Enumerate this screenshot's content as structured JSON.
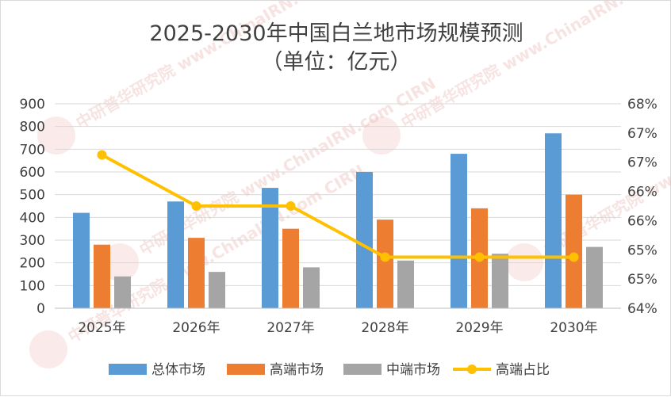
{
  "chart_data": {
    "type": "bar",
    "title": "2025-2030年中国白兰地市场规模预测",
    "subtitle": "（单位：亿元）",
    "categories": [
      "2025年",
      "2026年",
      "2027年",
      "2028年",
      "2029年",
      "2030年"
    ],
    "series": [
      {
        "name": "总体市场",
        "type": "bar",
        "axis": "left",
        "color": "#5b9bd5",
        "values": [
          420,
          470,
          530,
          600,
          680,
          770
        ]
      },
      {
        "name": "高端市场",
        "type": "bar",
        "axis": "left",
        "color": "#ed7d31",
        "values": [
          280,
          310,
          350,
          390,
          440,
          500
        ]
      },
      {
        "name": "中端市场",
        "type": "bar",
        "axis": "left",
        "color": "#a5a5a5",
        "values": [
          140,
          160,
          180,
          210,
          240,
          270
        ]
      },
      {
        "name": "高端占比",
        "type": "line",
        "axis": "right",
        "color": "#ffc000",
        "values": [
          67,
          66,
          66,
          65,
          65,
          65
        ]
      }
    ],
    "y_left": {
      "min": 0,
      "max": 900,
      "ticks": [
        "0",
        "100",
        "200",
        "300",
        "400",
        "500",
        "600",
        "700",
        "800",
        "900"
      ]
    },
    "y_right": {
      "min": 64,
      "max": 68,
      "ticks": [
        "64%",
        "65%",
        "65%",
        "66%",
        "66%",
        "67%",
        "67%",
        "68%"
      ]
    },
    "grid": true,
    "legend_position": "bottom",
    "watermark": "中研普华研究院 www.ChinaIRN.com CIRN"
  }
}
